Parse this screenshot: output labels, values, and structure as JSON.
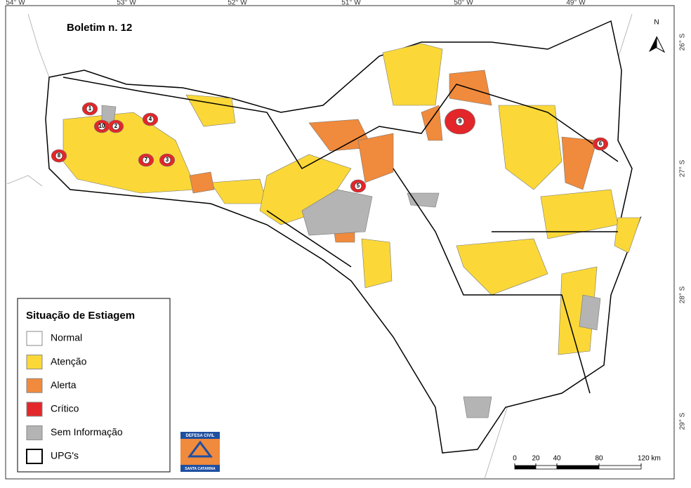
{
  "map": {
    "title": "Boletim n. 12",
    "north": "N",
    "lon_labels": [
      "54° W",
      "53° W",
      "52° W",
      "51° W",
      "50° W",
      "49° W"
    ],
    "lat_labels": [
      "26° S",
      "27° S",
      "28° S",
      "29° S"
    ],
    "legend": {
      "title": "Situação de Estiagem",
      "items": [
        {
          "name": "Normal",
          "color": "#ffffff"
        },
        {
          "name": "Atenção",
          "color": "#fbd838"
        },
        {
          "name": "Alerta",
          "color": "#f08a3c"
        },
        {
          "name": "Crítico",
          "color": "#e3262a"
        },
        {
          "name": "Sem Informação",
          "color": "#b4b4b4"
        },
        {
          "name": "UPG's",
          "color": "#ffffff"
        }
      ]
    },
    "critical_labels": [
      "1",
      "2",
      "3",
      "4",
      "5",
      "6",
      "7",
      "8",
      "9",
      "10"
    ],
    "logo": {
      "top": "DEFESA CIVIL",
      "bottom": "SANTA CATARINA"
    },
    "scale_bar": {
      "ticks": [
        0,
        20,
        40,
        80,
        {
          "value": 120,
          "label": "120 km"
        }
      ]
    }
  }
}
